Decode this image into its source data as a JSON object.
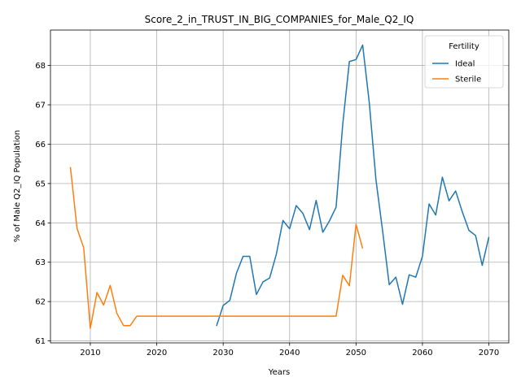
{
  "chart_data": {
    "type": "line",
    "title": "Score_2_in_TRUST_IN_BIG_COMPANIES_for_Male_Q2_IQ",
    "xlabel": "Years",
    "ylabel": "% of Male Q2_IQ Population",
    "xlim": [
      2004,
      2073
    ],
    "ylim": [
      60.95,
      68.9
    ],
    "xticks": [
      2010,
      2020,
      2030,
      2040,
      2050,
      2060,
      2070
    ],
    "yticks": [
      61,
      62,
      63,
      64,
      65,
      66,
      67,
      68
    ],
    "grid": true,
    "legend": {
      "title": "Fertility",
      "placement": "upper right"
    },
    "series": [
      {
        "name": "Ideal",
        "color": "#1f77b4",
        "x": [
          2029,
          2030,
          2031,
          2032,
          2033,
          2034,
          2035,
          2036,
          2037,
          2038,
          2039,
          2040,
          2041,
          2042,
          2043,
          2044,
          2045,
          2046,
          2047,
          2048,
          2049,
          2050,
          2051,
          2052,
          2053,
          2054,
          2055,
          2056,
          2057,
          2058,
          2059,
          2060,
          2061,
          2062,
          2063,
          2064,
          2065,
          2066,
          2067,
          2068,
          2069,
          2070
        ],
        "y": [
          61.38,
          61.9,
          62.03,
          62.72,
          63.15,
          63.15,
          62.18,
          62.5,
          62.6,
          63.2,
          64.06,
          63.85,
          64.44,
          64.24,
          63.83,
          64.57,
          63.76,
          64.05,
          64.4,
          66.5,
          68.1,
          68.15,
          68.52,
          67.05,
          65.1,
          63.8,
          62.43,
          62.62,
          61.93,
          62.68,
          62.62,
          63.15,
          64.48,
          64.2,
          65.16,
          64.56,
          64.81,
          64.28,
          63.81,
          63.68,
          62.92,
          63.64
        ]
      },
      {
        "name": "Sterile",
        "color": "#ff7f0e",
        "x": [
          2007,
          2008,
          2009,
          2010,
          2011,
          2012,
          2013,
          2014,
          2015,
          2016,
          2017,
          2018,
          2019,
          2020,
          2021,
          2022,
          2023,
          2024,
          2025,
          2026,
          2027,
          2028,
          2029,
          2030,
          2031,
          2032,
          2033,
          2034,
          2035,
          2036,
          2037,
          2038,
          2039,
          2040,
          2041,
          2042,
          2043,
          2044,
          2045,
          2046,
          2047,
          2048,
          2049,
          2050,
          2051
        ],
        "y": [
          65.42,
          63.86,
          63.37,
          61.32,
          62.23,
          61.91,
          62.41,
          61.7,
          61.39,
          61.39,
          61.63,
          61.63,
          61.63,
          61.63,
          61.63,
          61.63,
          61.63,
          61.63,
          61.63,
          61.63,
          61.63,
          61.63,
          61.63,
          61.63,
          61.63,
          61.63,
          61.63,
          61.63,
          61.63,
          61.63,
          61.63,
          61.63,
          61.63,
          61.63,
          61.63,
          61.63,
          61.63,
          61.63,
          61.63,
          61.63,
          61.63,
          62.67,
          62.4,
          63.96,
          63.35
        ]
      }
    ]
  }
}
